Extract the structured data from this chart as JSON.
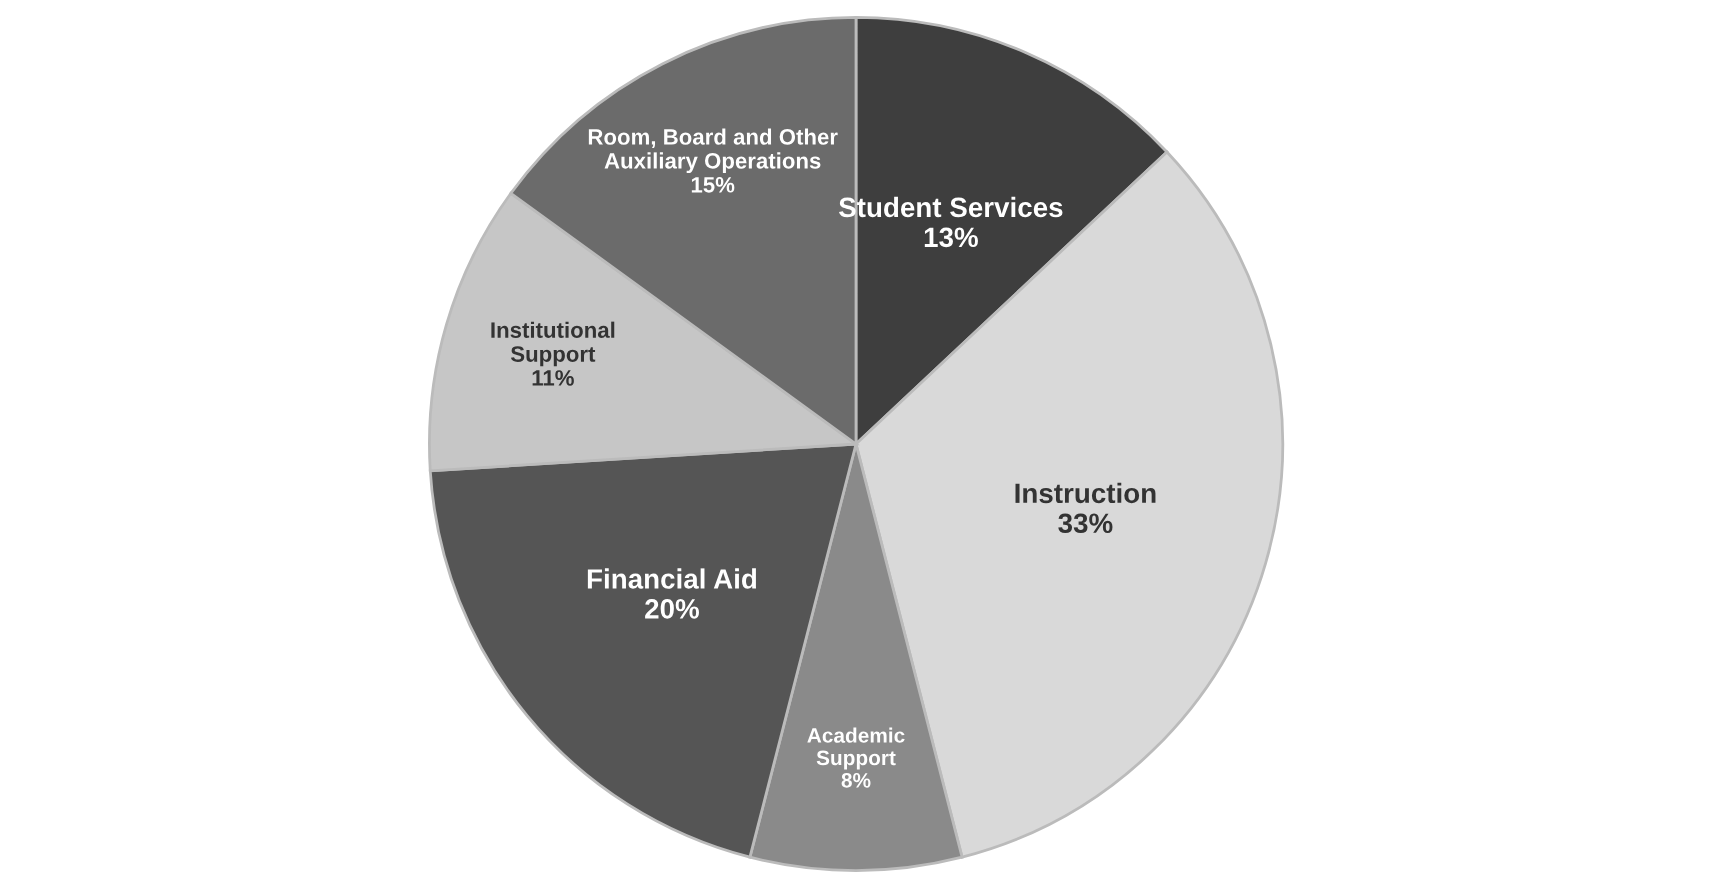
{
  "chart_data": {
    "type": "pie",
    "categories": [
      "Student Services",
      "Instruction",
      "Academic\nSupport",
      "Financial Aid",
      "Institutional\nSupport",
      "Room, Board and Other\nAuxiliary Operations"
    ],
    "values": [
      13,
      33,
      8,
      20,
      11,
      15
    ],
    "colors": [
      "#3e3e3e",
      "#d9d9d9",
      "#8a8a8a",
      "#555555",
      "#c6c6c6",
      "#6b6b6b"
    ],
    "value_labels": [
      "13%",
      "33%",
      "8%",
      "20%",
      "11%",
      "15%"
    ],
    "data_labels": true,
    "legend": false
  }
}
